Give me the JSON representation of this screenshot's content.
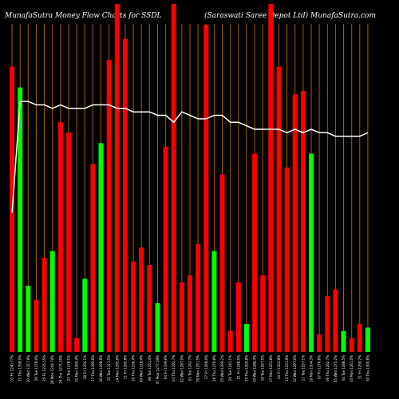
{
  "header": {
    "left": "MunafaSutra  Money Flow  Charts for SSDL",
    "right": "(Saraswati   Saree   Depot Ltd) MunafaSutra.com"
  },
  "colors": {
    "background": "#000000",
    "up": "#00ff00",
    "down": "#ff0000",
    "grid": "#a0600b",
    "line": "#ffffff"
  },
  "chart_data": {
    "type": "bar",
    "ylim": [
      0,
      100
    ],
    "grid": "vertical",
    "categories": [
      "01 Fri 1240.77%",
      "31 Thu 1358.0%",
      "30 Wed 1317.9%",
      "29 Tue 1278.0%",
      "25 Fri 1235.15%",
      "28 Mon 1244.74%",
      "24 Thu 1271.55%",
      "22 Tue 1278.1%",
      "21 Mon 1260.4%",
      "18 Fri 1250.1%",
      "17 Thu 1285.6%",
      "16 Wed 1298.8%",
      "15 Tue 1311.5%",
      "14 Mon 1295.6%",
      "11 Fri 1290.8%",
      "10 Thu 1236.4%",
      "09 Wed 1318.4%",
      "08 Tue 1251.4%",
      "07 Mon 1277.59%",
      "04 Fri 1199.6%",
      "03 Thu 1292.7%",
      "02 Wed 1287.0%",
      "01 Tue 1242.7%",
      "30 Mon 1251.5%",
      "27 Fri 1268.0%",
      "26 Thu 1270.8%",
      "25 Wed 1299.2%",
      "24 Tue 1241.1%",
      "21 Fri 1248.5%",
      "20 Thu 1300.8%",
      "19 Wed 1286.3%",
      "18 Tue 1267.5%",
      "17 Mon 1251.8%",
      "14 Fri 1322.8%",
      "13 Thu 1331.9%",
      "12 Wed 1297.0%",
      "11 Tue 1257.1%",
      "10 Mon 1304.3%",
      "07 Fri 1276.6%",
      "06 Thu 1262.7%",
      "05 Wed 1275.2%",
      "04 Tue 1288.5%",
      "03 Mon 1261.0%",
      "31 Fri 1259.2%",
      "30 Thu 1300.8%"
    ],
    "series": [
      {
        "values": [
          82,
          76,
          19,
          15,
          27,
          29,
          66,
          63,
          4,
          21,
          54,
          60,
          84,
          100,
          90,
          26,
          30,
          25,
          14,
          59,
          100,
          20,
          22,
          31,
          94,
          29,
          51,
          6,
          20,
          8,
          57,
          22,
          100,
          82,
          53,
          74,
          75,
          57,
          5,
          16,
          18,
          6,
          4,
          8,
          7
        ],
        "colors": [
          "down",
          "up",
          "up",
          "down",
          "down",
          "up",
          "down",
          "down",
          "down",
          "up",
          "down",
          "up",
          "down",
          "down",
          "down",
          "down",
          "down",
          "down",
          "up",
          "down",
          "down",
          "down",
          "down",
          "down",
          "down",
          "up",
          "down",
          "down",
          "down",
          "up",
          "down",
          "down",
          "down",
          "down",
          "down",
          "down",
          "down",
          "up",
          "down",
          "down",
          "down",
          "up",
          "down",
          "down",
          "up"
        ]
      }
    ],
    "line": [
      40,
      72,
      72,
      71,
      71,
      70,
      71,
      70,
      70,
      70,
      71,
      71,
      71,
      70,
      70,
      69,
      69,
      69,
      68,
      68,
      66,
      69,
      68,
      67,
      67,
      68,
      68,
      66,
      66,
      65,
      64,
      64,
      64,
      64,
      63,
      64,
      63,
      64,
      63,
      63,
      62,
      62,
      62,
      62,
      63
    ]
  }
}
